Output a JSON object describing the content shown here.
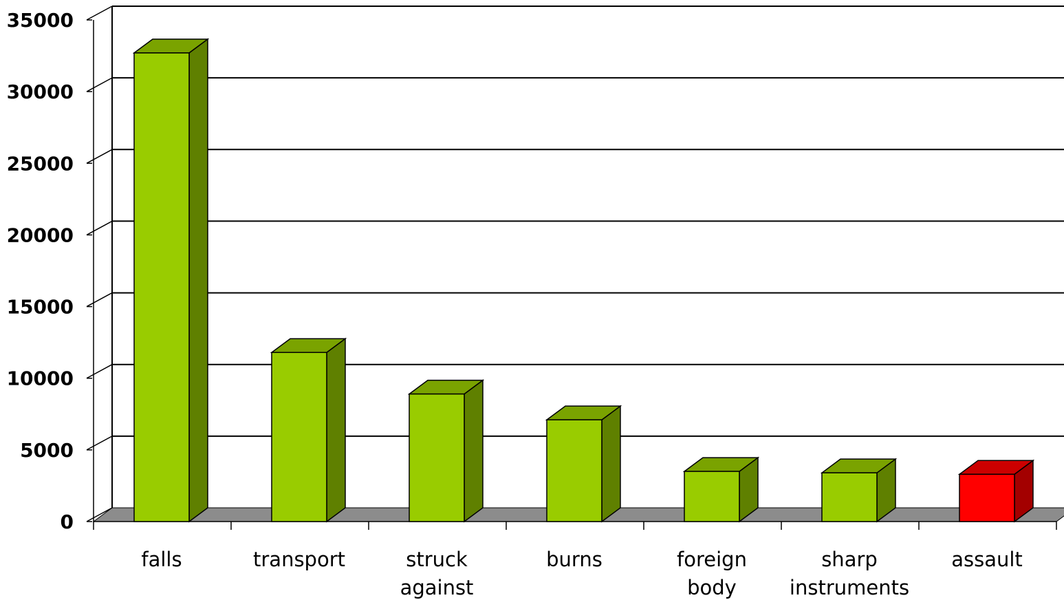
{
  "chart_data": {
    "type": "bar",
    "title": "",
    "xlabel": "",
    "ylabel": "",
    "categories": [
      "falls",
      "transport",
      "struck against",
      "burns",
      "foreign body",
      "sharp instruments",
      "assault"
    ],
    "category_lines": [
      [
        "falls"
      ],
      [
        "transport"
      ],
      [
        "struck",
        "against"
      ],
      [
        "burns"
      ],
      [
        "foreign",
        "body"
      ],
      [
        "sharp",
        "instruments"
      ],
      [
        "assault"
      ]
    ],
    "values": [
      32700,
      11800,
      8900,
      7100,
      3500,
      3400,
      3300
    ],
    "ylim": [
      0,
      35000
    ],
    "yticks": [
      "0",
      "5000",
      "10000",
      "15000",
      "20000",
      "25000",
      "30000",
      "35000"
    ],
    "grid": true,
    "legend": "none",
    "colors": {
      "bar_front": "#99CC00",
      "bar_top": "#7AA300",
      "bar_side": "#5F8000",
      "highlight_front": "#FF0000",
      "highlight_top": "#CC0000",
      "highlight_side": "#A30000",
      "floor": "#8C8C8C",
      "gridline": "#000000"
    },
    "highlight_category": "assault"
  }
}
